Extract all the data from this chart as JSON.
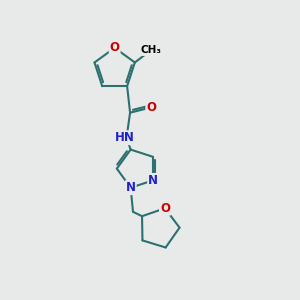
{
  "background_color": "#e8eaea",
  "bond_color": "#2d7070",
  "bond_width": 1.5,
  "atom_colors": {
    "O": "#cc0000",
    "N": "#2222cc",
    "C": "#000000",
    "H": "#555555"
  },
  "font_size": 8.5,
  "figsize": [
    3.0,
    3.0
  ],
  "dpi": 100
}
